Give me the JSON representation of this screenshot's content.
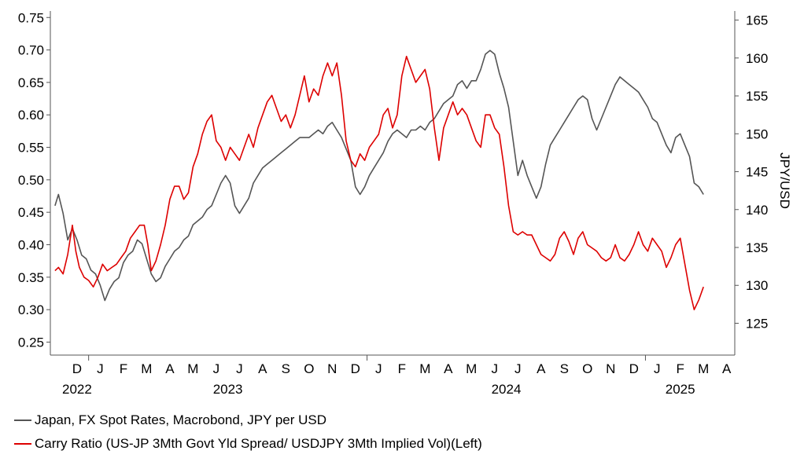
{
  "chart_data": {
    "type": "line",
    "title": "",
    "y_left": {
      "ticks": [
        "0.25",
        "0.30",
        "0.35",
        "0.40",
        "0.45",
        "0.50",
        "0.55",
        "0.60",
        "0.65",
        "0.70",
        "0.75"
      ],
      "range": [
        0.23,
        0.76
      ]
    },
    "y_right": {
      "label": "JPY/USD",
      "ticks": [
        "125",
        "130",
        "135",
        "140",
        "145",
        "150",
        "155",
        "160",
        "165"
      ],
      "range": [
        120.8,
        166.2
      ]
    },
    "x_months": [
      "D",
      "J",
      "F",
      "M",
      "A",
      "M",
      "J",
      "J",
      "A",
      "S",
      "O",
      "N",
      "D",
      "J",
      "F",
      "M",
      "A",
      "M",
      "J",
      "J",
      "A",
      "S",
      "O",
      "N",
      "D",
      "J",
      "F",
      "M",
      "A"
    ],
    "x_years": [
      {
        "label": "2022",
        "month_index": 0
      },
      {
        "label": "2023",
        "month_index": 6.5
      },
      {
        "label": "2024",
        "month_index": 18.5
      },
      {
        "label": "2025",
        "month_index": 26
      }
    ],
    "x_range": [
      -1.15,
      28.35
    ],
    "grid": false,
    "legend_position": "bottom-left",
    "series": [
      {
        "name": "Japan, FX Spot Rates, Macrobond, JPY per USD",
        "axis": "right",
        "color": "#555555",
        "points": [
          [
            -0.95,
            140.5
          ],
          [
            -0.8,
            142.0
          ],
          [
            -0.6,
            139.5
          ],
          [
            -0.4,
            136.0
          ],
          [
            -0.2,
            137.5
          ],
          [
            0.0,
            136.0
          ],
          [
            0.2,
            134.0
          ],
          [
            0.4,
            133.5
          ],
          [
            0.6,
            132.0
          ],
          [
            0.8,
            131.5
          ],
          [
            1.0,
            130.0
          ],
          [
            1.2,
            128.0
          ],
          [
            1.4,
            129.5
          ],
          [
            1.6,
            130.5
          ],
          [
            1.8,
            131.0
          ],
          [
            2.0,
            133.0
          ],
          [
            2.2,
            134.0
          ],
          [
            2.4,
            134.5
          ],
          [
            2.6,
            136.0
          ],
          [
            2.8,
            135.5
          ],
          [
            3.0,
            133.5
          ],
          [
            3.2,
            131.5
          ],
          [
            3.4,
            130.5
          ],
          [
            3.6,
            131.0
          ],
          [
            3.8,
            132.5
          ],
          [
            4.0,
            133.5
          ],
          [
            4.2,
            134.5
          ],
          [
            4.4,
            135.0
          ],
          [
            4.6,
            136.0
          ],
          [
            4.8,
            136.5
          ],
          [
            5.0,
            138.0
          ],
          [
            5.2,
            138.5
          ],
          [
            5.4,
            139.0
          ],
          [
            5.6,
            140.0
          ],
          [
            5.8,
            140.5
          ],
          [
            6.0,
            142.0
          ],
          [
            6.2,
            143.5
          ],
          [
            6.4,
            144.5
          ],
          [
            6.6,
            143.5
          ],
          [
            6.8,
            140.5
          ],
          [
            7.0,
            139.5
          ],
          [
            7.2,
            140.5
          ],
          [
            7.4,
            141.5
          ],
          [
            7.6,
            143.5
          ],
          [
            7.8,
            144.5
          ],
          [
            8.0,
            145.5
          ],
          [
            8.2,
            146.0
          ],
          [
            8.4,
            146.5
          ],
          [
            8.6,
            147.0
          ],
          [
            8.8,
            147.5
          ],
          [
            9.0,
            148.0
          ],
          [
            9.2,
            148.5
          ],
          [
            9.4,
            149.0
          ],
          [
            9.6,
            149.5
          ],
          [
            9.8,
            149.5
          ],
          [
            10.0,
            149.5
          ],
          [
            10.2,
            150.0
          ],
          [
            10.4,
            150.5
          ],
          [
            10.6,
            150.0
          ],
          [
            10.8,
            151.0
          ],
          [
            11.0,
            151.5
          ],
          [
            11.2,
            150.5
          ],
          [
            11.4,
            149.5
          ],
          [
            11.6,
            148.0
          ],
          [
            11.8,
            146.5
          ],
          [
            12.0,
            143.0
          ],
          [
            12.2,
            142.0
          ],
          [
            12.4,
            143.0
          ],
          [
            12.6,
            144.5
          ],
          [
            12.8,
            145.5
          ],
          [
            13.0,
            146.5
          ],
          [
            13.2,
            147.5
          ],
          [
            13.4,
            149.0
          ],
          [
            13.6,
            150.0
          ],
          [
            13.8,
            150.5
          ],
          [
            14.0,
            150.0
          ],
          [
            14.2,
            149.5
          ],
          [
            14.4,
            150.5
          ],
          [
            14.6,
            150.5
          ],
          [
            14.8,
            151.0
          ],
          [
            15.0,
            150.5
          ],
          [
            15.2,
            151.5
          ],
          [
            15.4,
            152.0
          ],
          [
            15.6,
            153.0
          ],
          [
            15.8,
            154.0
          ],
          [
            16.0,
            154.5
          ],
          [
            16.2,
            155.0
          ],
          [
            16.4,
            156.5
          ],
          [
            16.6,
            157.0
          ],
          [
            16.8,
            156.0
          ],
          [
            17.0,
            157.0
          ],
          [
            17.2,
            157.0
          ],
          [
            17.4,
            158.5
          ],
          [
            17.6,
            160.5
          ],
          [
            17.8,
            161.0
          ],
          [
            18.0,
            160.5
          ],
          [
            18.2,
            158.0
          ],
          [
            18.4,
            156.0
          ],
          [
            18.6,
            153.5
          ],
          [
            18.8,
            149.0
          ],
          [
            19.0,
            144.5
          ],
          [
            19.2,
            146.5
          ],
          [
            19.4,
            144.5
          ],
          [
            19.6,
            143.0
          ],
          [
            19.8,
            141.5
          ],
          [
            20.0,
            143.0
          ],
          [
            20.2,
            146.0
          ],
          [
            20.4,
            148.5
          ],
          [
            20.6,
            149.5
          ],
          [
            20.8,
            150.5
          ],
          [
            21.0,
            151.5
          ],
          [
            21.2,
            152.5
          ],
          [
            21.4,
            153.5
          ],
          [
            21.6,
            154.5
          ],
          [
            21.8,
            155.0
          ],
          [
            22.0,
            154.5
          ],
          [
            22.2,
            152.0
          ],
          [
            22.4,
            150.5
          ],
          [
            22.6,
            152.0
          ],
          [
            22.8,
            153.5
          ],
          [
            23.0,
            155.0
          ],
          [
            23.2,
            156.5
          ],
          [
            23.4,
            157.5
          ],
          [
            23.6,
            157.0
          ],
          [
            23.8,
            156.5
          ],
          [
            24.0,
            156.0
          ],
          [
            24.2,
            155.5
          ],
          [
            24.4,
            154.5
          ],
          [
            24.6,
            153.5
          ],
          [
            24.8,
            152.0
          ],
          [
            25.0,
            151.5
          ],
          [
            25.2,
            150.0
          ],
          [
            25.4,
            148.5
          ],
          [
            25.6,
            147.5
          ],
          [
            25.8,
            149.5
          ],
          [
            26.0,
            150.0
          ],
          [
            26.2,
            148.5
          ],
          [
            26.4,
            147.0
          ],
          [
            26.6,
            143.5
          ],
          [
            26.8,
            143.0
          ],
          [
            27.0,
            142.0
          ]
        ]
      },
      {
        "name": "Carry Ratio (US-JP 3Mth Govt Yld Spread/ USDJPY 3Mth Implied Vol)(Left)",
        "axis": "left",
        "color": "#dd0000",
        "points": [
          [
            -0.95,
            0.36
          ],
          [
            -0.8,
            0.365
          ],
          [
            -0.6,
            0.355
          ],
          [
            -0.4,
            0.385
          ],
          [
            -0.2,
            0.43
          ],
          [
            -0.05,
            0.39
          ],
          [
            0.1,
            0.365
          ],
          [
            0.3,
            0.35
          ],
          [
            0.5,
            0.345
          ],
          [
            0.7,
            0.335
          ],
          [
            0.9,
            0.35
          ],
          [
            1.1,
            0.37
          ],
          [
            1.3,
            0.36
          ],
          [
            1.5,
            0.365
          ],
          [
            1.7,
            0.37
          ],
          [
            1.9,
            0.38
          ],
          [
            2.1,
            0.39
          ],
          [
            2.3,
            0.41
          ],
          [
            2.5,
            0.42
          ],
          [
            2.7,
            0.43
          ],
          [
            2.9,
            0.43
          ],
          [
            3.05,
            0.4
          ],
          [
            3.2,
            0.36
          ],
          [
            3.4,
            0.375
          ],
          [
            3.6,
            0.4
          ],
          [
            3.8,
            0.43
          ],
          [
            4.0,
            0.47
          ],
          [
            4.2,
            0.49
          ],
          [
            4.4,
            0.49
          ],
          [
            4.6,
            0.47
          ],
          [
            4.8,
            0.48
          ],
          [
            5.0,
            0.52
          ],
          [
            5.2,
            0.54
          ],
          [
            5.4,
            0.57
          ],
          [
            5.6,
            0.59
          ],
          [
            5.8,
            0.6
          ],
          [
            6.0,
            0.56
          ],
          [
            6.2,
            0.55
          ],
          [
            6.4,
            0.53
          ],
          [
            6.6,
            0.55
          ],
          [
            6.8,
            0.54
          ],
          [
            7.0,
            0.53
          ],
          [
            7.2,
            0.55
          ],
          [
            7.4,
            0.57
          ],
          [
            7.6,
            0.55
          ],
          [
            7.8,
            0.58
          ],
          [
            8.0,
            0.6
          ],
          [
            8.2,
            0.62
          ],
          [
            8.4,
            0.63
          ],
          [
            8.6,
            0.61
          ],
          [
            8.8,
            0.59
          ],
          [
            9.0,
            0.6
          ],
          [
            9.2,
            0.58
          ],
          [
            9.4,
            0.6
          ],
          [
            9.6,
            0.63
          ],
          [
            9.8,
            0.66
          ],
          [
            10.0,
            0.62
          ],
          [
            10.2,
            0.64
          ],
          [
            10.4,
            0.63
          ],
          [
            10.6,
            0.66
          ],
          [
            10.8,
            0.68
          ],
          [
            11.0,
            0.66
          ],
          [
            11.2,
            0.68
          ],
          [
            11.4,
            0.63
          ],
          [
            11.6,
            0.56
          ],
          [
            11.8,
            0.53
          ],
          [
            12.0,
            0.52
          ],
          [
            12.2,
            0.54
          ],
          [
            12.4,
            0.53
          ],
          [
            12.6,
            0.55
          ],
          [
            12.8,
            0.56
          ],
          [
            13.0,
            0.57
          ],
          [
            13.2,
            0.6
          ],
          [
            13.4,
            0.61
          ],
          [
            13.6,
            0.58
          ],
          [
            13.8,
            0.6
          ],
          [
            14.0,
            0.66
          ],
          [
            14.2,
            0.69
          ],
          [
            14.4,
            0.67
          ],
          [
            14.6,
            0.65
          ],
          [
            14.8,
            0.66
          ],
          [
            15.0,
            0.67
          ],
          [
            15.2,
            0.64
          ],
          [
            15.4,
            0.58
          ],
          [
            15.6,
            0.53
          ],
          [
            15.8,
            0.58
          ],
          [
            16.0,
            0.6
          ],
          [
            16.2,
            0.62
          ],
          [
            16.4,
            0.6
          ],
          [
            16.6,
            0.61
          ],
          [
            16.8,
            0.6
          ],
          [
            17.0,
            0.58
          ],
          [
            17.2,
            0.56
          ],
          [
            17.4,
            0.55
          ],
          [
            17.6,
            0.6
          ],
          [
            17.8,
            0.6
          ],
          [
            18.0,
            0.58
          ],
          [
            18.2,
            0.57
          ],
          [
            18.4,
            0.52
          ],
          [
            18.6,
            0.46
          ],
          [
            18.8,
            0.42
          ],
          [
            19.0,
            0.415
          ],
          [
            19.2,
            0.42
          ],
          [
            19.4,
            0.415
          ],
          [
            19.6,
            0.415
          ],
          [
            19.8,
            0.4
          ],
          [
            20.0,
            0.385
          ],
          [
            20.2,
            0.38
          ],
          [
            20.4,
            0.375
          ],
          [
            20.6,
            0.385
          ],
          [
            20.8,
            0.41
          ],
          [
            21.0,
            0.42
          ],
          [
            21.2,
            0.405
          ],
          [
            21.4,
            0.385
          ],
          [
            21.6,
            0.41
          ],
          [
            21.8,
            0.42
          ],
          [
            22.0,
            0.4
          ],
          [
            22.2,
            0.395
          ],
          [
            22.4,
            0.39
          ],
          [
            22.6,
            0.38
          ],
          [
            22.8,
            0.375
          ],
          [
            23.0,
            0.38
          ],
          [
            23.2,
            0.4
          ],
          [
            23.4,
            0.38
          ],
          [
            23.6,
            0.375
          ],
          [
            23.8,
            0.385
          ],
          [
            24.0,
            0.4
          ],
          [
            24.2,
            0.42
          ],
          [
            24.4,
            0.4
          ],
          [
            24.6,
            0.39
          ],
          [
            24.8,
            0.41
          ],
          [
            25.0,
            0.4
          ],
          [
            25.2,
            0.39
          ],
          [
            25.4,
            0.365
          ],
          [
            25.6,
            0.38
          ],
          [
            25.8,
            0.4
          ],
          [
            26.0,
            0.41
          ],
          [
            26.2,
            0.37
          ],
          [
            26.4,
            0.33
          ],
          [
            26.6,
            0.3
          ],
          [
            26.8,
            0.315
          ],
          [
            27.0,
            0.335
          ]
        ]
      }
    ]
  }
}
